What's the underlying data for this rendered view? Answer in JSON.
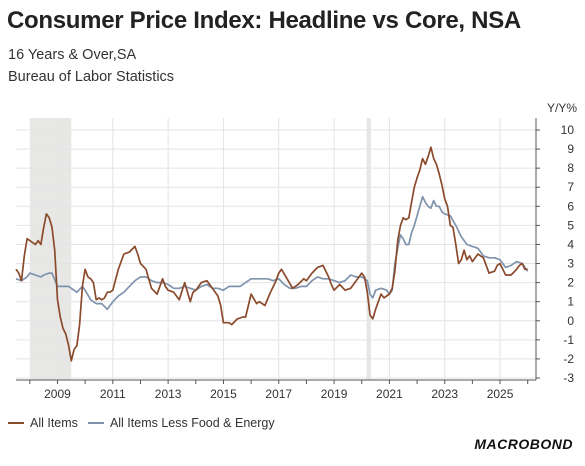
{
  "title": "Consumer Price Index: Headline vs Core, NSA",
  "subtitle": "16 Years & Over,SA",
  "source": "Bureau of Labor Statistics",
  "logo": "MACROBOND",
  "chart_data": {
    "type": "line",
    "ylabel": "Y/Y%",
    "ylim": [
      -3,
      10
    ],
    "yticks": [
      -3,
      -2,
      -1,
      0,
      1,
      2,
      3,
      4,
      5,
      6,
      7,
      8,
      9,
      10
    ],
    "xlim": [
      2007.5,
      2026.3
    ],
    "xticks": [
      2009,
      2011,
      2013,
      2015,
      2017,
      2019,
      2021,
      2023,
      2025
    ],
    "grid": true,
    "legend_position": "bottom-left",
    "recessions": [
      [
        2008.0,
        2009.5
      ],
      [
        2020.17,
        2020.33
      ]
    ],
    "colors": {
      "headline": "#8b4a2b",
      "core": "#7f93ad",
      "recession": "#e7e8e6"
    },
    "series": [
      {
        "name": "All Items",
        "points": [
          [
            2007.5,
            2.7
          ],
          [
            2007.6,
            2.5
          ],
          [
            2007.7,
            2.1
          ],
          [
            2007.8,
            3.4
          ],
          [
            2007.9,
            4.3
          ],
          [
            2008.0,
            4.2
          ],
          [
            2008.1,
            4.1
          ],
          [
            2008.2,
            4.0
          ],
          [
            2008.3,
            4.2
          ],
          [
            2008.4,
            4.0
          ],
          [
            2008.5,
            4.9
          ],
          [
            2008.6,
            5.6
          ],
          [
            2008.7,
            5.4
          ],
          [
            2008.8,
            4.9
          ],
          [
            2008.9,
            3.7
          ],
          [
            2009.0,
            1.1
          ],
          [
            2009.1,
            0.2
          ],
          [
            2009.2,
            -0.4
          ],
          [
            2009.3,
            -0.7
          ],
          [
            2009.4,
            -1.3
          ],
          [
            2009.5,
            -2.1
          ],
          [
            2009.6,
            -1.5
          ],
          [
            2009.7,
            -1.3
          ],
          [
            2009.8,
            -0.2
          ],
          [
            2009.9,
            1.8
          ],
          [
            2010.0,
            2.7
          ],
          [
            2010.1,
            2.3
          ],
          [
            2010.2,
            2.2
          ],
          [
            2010.3,
            2.0
          ],
          [
            2010.4,
            1.1
          ],
          [
            2010.5,
            1.2
          ],
          [
            2010.6,
            1.1
          ],
          [
            2010.7,
            1.2
          ],
          [
            2010.8,
            1.5
          ],
          [
            2010.9,
            1.5
          ],
          [
            2011.0,
            1.6
          ],
          [
            2011.2,
            2.7
          ],
          [
            2011.4,
            3.5
          ],
          [
            2011.6,
            3.6
          ],
          [
            2011.8,
            3.9
          ],
          [
            2011.9,
            3.5
          ],
          [
            2012.0,
            3.0
          ],
          [
            2012.2,
            2.7
          ],
          [
            2012.4,
            1.7
          ],
          [
            2012.6,
            1.4
          ],
          [
            2012.8,
            2.2
          ],
          [
            2012.9,
            1.8
          ],
          [
            2013.0,
            1.6
          ],
          [
            2013.2,
            1.5
          ],
          [
            2013.4,
            1.1
          ],
          [
            2013.6,
            2.0
          ],
          [
            2013.8,
            1.0
          ],
          [
            2013.9,
            1.5
          ],
          [
            2014.0,
            1.6
          ],
          [
            2014.2,
            2.0
          ],
          [
            2014.4,
            2.1
          ],
          [
            2014.6,
            1.7
          ],
          [
            2014.8,
            1.3
          ],
          [
            2014.9,
            0.8
          ],
          [
            2015.0,
            -0.1
          ],
          [
            2015.2,
            -0.1
          ],
          [
            2015.3,
            -0.2
          ],
          [
            2015.5,
            0.1
          ],
          [
            2015.7,
            0.2
          ],
          [
            2015.8,
            0.2
          ],
          [
            2016.0,
            1.4
          ],
          [
            2016.2,
            0.9
          ],
          [
            2016.3,
            1.0
          ],
          [
            2016.5,
            0.8
          ],
          [
            2016.7,
            1.5
          ],
          [
            2016.9,
            2.1
          ],
          [
            2017.0,
            2.5
          ],
          [
            2017.1,
            2.7
          ],
          [
            2017.3,
            2.2
          ],
          [
            2017.5,
            1.7
          ],
          [
            2017.7,
            1.9
          ],
          [
            2017.9,
            2.2
          ],
          [
            2018.0,
            2.1
          ],
          [
            2018.2,
            2.5
          ],
          [
            2018.4,
            2.8
          ],
          [
            2018.6,
            2.9
          ],
          [
            2018.8,
            2.3
          ],
          [
            2018.9,
            1.9
          ],
          [
            2019.0,
            1.6
          ],
          [
            2019.2,
            1.9
          ],
          [
            2019.4,
            1.6
          ],
          [
            2019.6,
            1.7
          ],
          [
            2019.8,
            2.1
          ],
          [
            2019.9,
            2.3
          ],
          [
            2020.0,
            2.5
          ],
          [
            2020.1,
            2.3
          ],
          [
            2020.2,
            1.5
          ],
          [
            2020.3,
            0.3
          ],
          [
            2020.4,
            0.1
          ],
          [
            2020.5,
            0.6
          ],
          [
            2020.6,
            1.0
          ],
          [
            2020.7,
            1.4
          ],
          [
            2020.8,
            1.2
          ],
          [
            2020.9,
            1.3
          ],
          [
            2021.0,
            1.4
          ],
          [
            2021.1,
            1.7
          ],
          [
            2021.2,
            2.6
          ],
          [
            2021.3,
            4.2
          ],
          [
            2021.4,
            5.0
          ],
          [
            2021.5,
            5.4
          ],
          [
            2021.6,
            5.3
          ],
          [
            2021.7,
            5.4
          ],
          [
            2021.8,
            6.2
          ],
          [
            2021.9,
            7.0
          ],
          [
            2022.0,
            7.5
          ],
          [
            2022.1,
            7.9
          ],
          [
            2022.2,
            8.5
          ],
          [
            2022.3,
            8.2
          ],
          [
            2022.4,
            8.6
          ],
          [
            2022.5,
            9.1
          ],
          [
            2022.6,
            8.5
          ],
          [
            2022.7,
            8.2
          ],
          [
            2022.8,
            7.7
          ],
          [
            2022.9,
            7.1
          ],
          [
            2023.0,
            6.4
          ],
          [
            2023.1,
            6.0
          ],
          [
            2023.2,
            5.0
          ],
          [
            2023.3,
            4.9
          ],
          [
            2023.4,
            4.0
          ],
          [
            2023.5,
            3.0
          ],
          [
            2023.6,
            3.2
          ],
          [
            2023.7,
            3.7
          ],
          [
            2023.8,
            3.2
          ],
          [
            2023.9,
            3.4
          ],
          [
            2024.0,
            3.1
          ],
          [
            2024.2,
            3.5
          ],
          [
            2024.4,
            3.3
          ],
          [
            2024.5,
            2.9
          ],
          [
            2024.6,
            2.5
          ],
          [
            2024.8,
            2.6
          ],
          [
            2024.9,
            2.9
          ],
          [
            2025.0,
            3.0
          ],
          [
            2025.2,
            2.4
          ],
          [
            2025.4,
            2.4
          ],
          [
            2025.6,
            2.7
          ],
          [
            2025.7,
            2.9
          ],
          [
            2025.8,
            3.0
          ],
          [
            2025.9,
            2.7
          ],
          [
            2026.0,
            2.7
          ]
        ]
      },
      {
        "name": "All Items Less Food & Energy",
        "points": [
          [
            2007.5,
            2.2
          ],
          [
            2007.7,
            2.1
          ],
          [
            2007.9,
            2.3
          ],
          [
            2008.0,
            2.5
          ],
          [
            2008.2,
            2.4
          ],
          [
            2008.4,
            2.3
          ],
          [
            2008.5,
            2.4
          ],
          [
            2008.7,
            2.5
          ],
          [
            2008.8,
            2.5
          ],
          [
            2009.0,
            1.8
          ],
          [
            2009.2,
            1.8
          ],
          [
            2009.4,
            1.8
          ],
          [
            2009.5,
            1.7
          ],
          [
            2009.7,
            1.5
          ],
          [
            2009.9,
            1.8
          ],
          [
            2010.0,
            1.6
          ],
          [
            2010.2,
            1.1
          ],
          [
            2010.4,
            0.9
          ],
          [
            2010.6,
            0.9
          ],
          [
            2010.8,
            0.6
          ],
          [
            2011.0,
            1.0
          ],
          [
            2011.2,
            1.3
          ],
          [
            2011.4,
            1.5
          ],
          [
            2011.6,
            1.8
          ],
          [
            2011.8,
            2.1
          ],
          [
            2012.0,
            2.3
          ],
          [
            2012.2,
            2.3
          ],
          [
            2012.4,
            2.1
          ],
          [
            2012.6,
            2.0
          ],
          [
            2012.8,
            2.0
          ],
          [
            2013.0,
            1.9
          ],
          [
            2013.2,
            1.7
          ],
          [
            2013.4,
            1.7
          ],
          [
            2013.6,
            1.8
          ],
          [
            2013.8,
            1.7
          ],
          [
            2014.0,
            1.6
          ],
          [
            2014.2,
            1.8
          ],
          [
            2014.4,
            1.9
          ],
          [
            2014.6,
            1.7
          ],
          [
            2014.8,
            1.7
          ],
          [
            2015.0,
            1.6
          ],
          [
            2015.2,
            1.8
          ],
          [
            2015.4,
            1.8
          ],
          [
            2015.6,
            1.8
          ],
          [
            2015.8,
            2.0
          ],
          [
            2016.0,
            2.2
          ],
          [
            2016.2,
            2.2
          ],
          [
            2016.4,
            2.2
          ],
          [
            2016.6,
            2.2
          ],
          [
            2016.8,
            2.1
          ],
          [
            2017.0,
            2.2
          ],
          [
            2017.2,
            1.9
          ],
          [
            2017.4,
            1.7
          ],
          [
            2017.6,
            1.7
          ],
          [
            2017.8,
            1.8
          ],
          [
            2018.0,
            1.8
          ],
          [
            2018.2,
            2.1
          ],
          [
            2018.4,
            2.3
          ],
          [
            2018.6,
            2.2
          ],
          [
            2018.8,
            2.2
          ],
          [
            2019.0,
            2.1
          ],
          [
            2019.2,
            2.0
          ],
          [
            2019.4,
            2.1
          ],
          [
            2019.6,
            2.4
          ],
          [
            2019.8,
            2.3
          ],
          [
            2020.0,
            2.3
          ],
          [
            2020.2,
            2.1
          ],
          [
            2020.3,
            1.4
          ],
          [
            2020.4,
            1.2
          ],
          [
            2020.5,
            1.6
          ],
          [
            2020.7,
            1.7
          ],
          [
            2020.9,
            1.6
          ],
          [
            2021.0,
            1.4
          ],
          [
            2021.1,
            1.6
          ],
          [
            2021.2,
            3.0
          ],
          [
            2021.3,
            3.8
          ],
          [
            2021.4,
            4.5
          ],
          [
            2021.5,
            4.3
          ],
          [
            2021.6,
            4.0
          ],
          [
            2021.7,
            4.0
          ],
          [
            2021.8,
            4.6
          ],
          [
            2021.9,
            5.0
          ],
          [
            2022.0,
            5.5
          ],
          [
            2022.1,
            6.0
          ],
          [
            2022.2,
            6.5
          ],
          [
            2022.3,
            6.2
          ],
          [
            2022.4,
            6.0
          ],
          [
            2022.5,
            5.9
          ],
          [
            2022.6,
            6.3
          ],
          [
            2022.7,
            6.0
          ],
          [
            2022.8,
            6.0
          ],
          [
            2022.9,
            5.7
          ],
          [
            2023.0,
            5.6
          ],
          [
            2023.2,
            5.5
          ],
          [
            2023.4,
            5.0
          ],
          [
            2023.6,
            4.4
          ],
          [
            2023.8,
            4.0
          ],
          [
            2024.0,
            3.9
          ],
          [
            2024.2,
            3.8
          ],
          [
            2024.4,
            3.4
          ],
          [
            2024.6,
            3.3
          ],
          [
            2024.8,
            3.3
          ],
          [
            2025.0,
            3.2
          ],
          [
            2025.2,
            2.8
          ],
          [
            2025.4,
            2.9
          ],
          [
            2025.6,
            3.1
          ],
          [
            2025.8,
            3.0
          ],
          [
            2026.0,
            2.6
          ]
        ]
      }
    ]
  }
}
